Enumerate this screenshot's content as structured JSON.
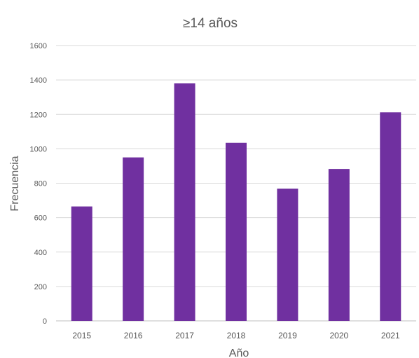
{
  "chart_data": {
    "type": "bar",
    "title": "≥14 años",
    "xlabel": "Año",
    "ylabel": "Frecuencia",
    "categories": [
      "2015",
      "2016",
      "2017",
      "2018",
      "2019",
      "2020",
      "2021"
    ],
    "values": [
      665,
      950,
      1380,
      1035,
      768,
      883,
      1212
    ],
    "ylim": [
      0,
      1600
    ],
    "yticks": [
      "0",
      "200",
      "400",
      "600",
      "800",
      "1000",
      "1200",
      "1400",
      "1600"
    ],
    "grid": true,
    "legend": "none",
    "bar_color": "#7030a0"
  }
}
